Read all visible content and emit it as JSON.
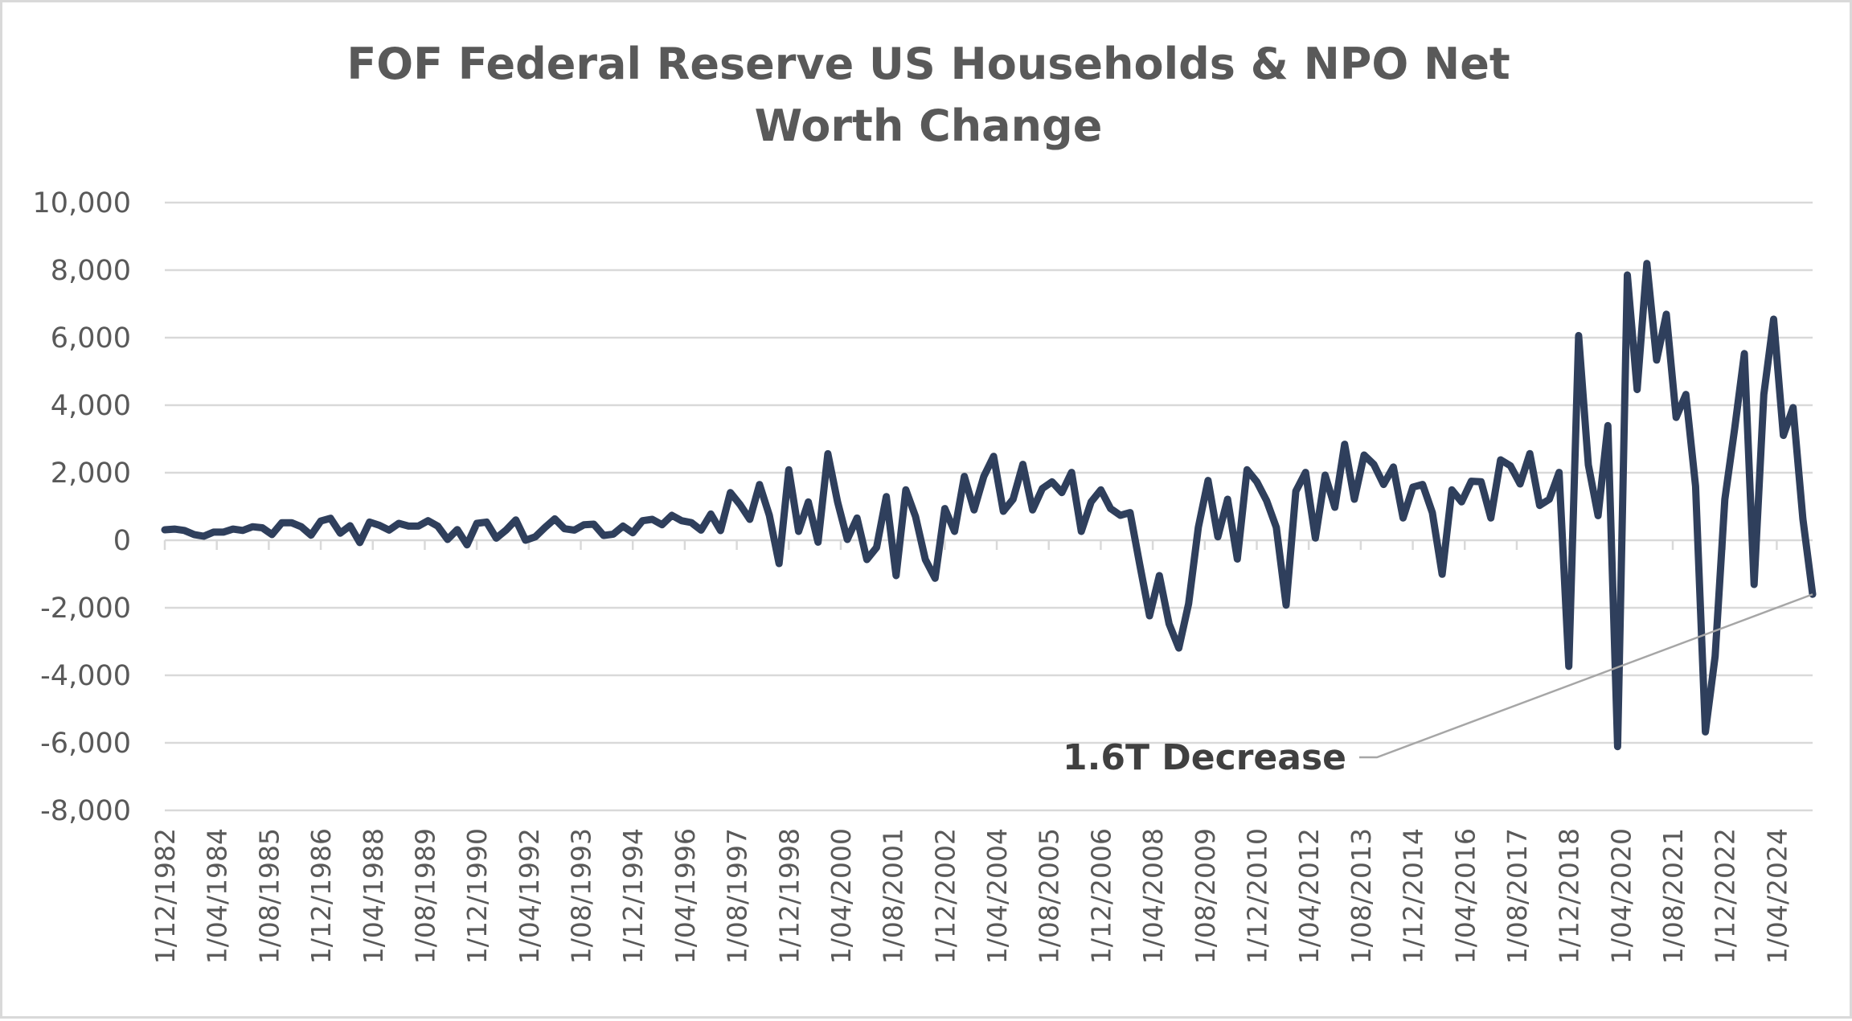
{
  "chart_data": {
    "type": "line",
    "title": [
      "FOF Federal Reserve US Households & NPO Net",
      "Worth Change"
    ],
    "xlabel": "",
    "ylabel": "",
    "ylim": [
      -8000,
      10000
    ],
    "yticks": [
      10000,
      8000,
      6000,
      4000,
      2000,
      0,
      -2000,
      -4000,
      -6000,
      -8000
    ],
    "ytick_labels": [
      "10,000",
      "8,000",
      "6,000",
      "4,000",
      "2,000",
      "0",
      "-2,000",
      "-4,000",
      "-6,000",
      "-8,000"
    ],
    "x_start": "1/12/1982",
    "x_frequency": "quarterly",
    "xtick_labels": [
      "1/12/1982",
      "1/04/1984",
      "1/08/1985",
      "1/12/1986",
      "1/04/1988",
      "1/08/1989",
      "1/12/1990",
      "1/04/1992",
      "1/08/1993",
      "1/12/1994",
      "1/04/1996",
      "1/08/1997",
      "1/12/1998",
      "1/04/2000",
      "1/08/2001",
      "1/12/2002",
      "1/04/2004",
      "1/08/2005",
      "1/12/2006",
      "1/04/2008",
      "1/08/2009",
      "1/12/2010",
      "1/04/2012",
      "1/08/2013",
      "1/12/2014",
      "1/04/2016",
      "1/08/2017",
      "1/12/2018",
      "1/04/2020",
      "1/08/2021",
      "1/12/2022",
      "1/04/2024"
    ],
    "xtick_every_n_points": 5.333,
    "grid": true,
    "legend": "none",
    "series": [
      {
        "name": "Net Worth Change",
        "color": "#2f3f5c",
        "values": [
          310,
          330,
          290,
          170,
          120,
          240,
          240,
          330,
          290,
          400,
          370,
          170,
          520,
          520,
          400,
          150,
          570,
          650,
          210,
          430,
          -70,
          539,
          444,
          301,
          500,
          420,
          420,
          579,
          420,
          24,
          317,
          -135,
          500,
          539,
          63,
          301,
          603,
          0,
          103,
          381,
          634,
          341,
          301,
          460,
          476,
          143,
          182,
          420,
          222,
          579,
          620,
          460,
          738,
          579,
          523,
          301,
          777,
          285,
          1412,
          1055,
          620,
          1650,
          738,
          -690,
          2086,
          262,
          1134,
          -56,
          2561,
          1134,
          24,
          658,
          -571,
          -214,
          1293,
          -1048,
          1493,
          699,
          -572,
          -1127,
          937,
          262,
          1890,
          897,
          1890,
          2485,
          858,
          1215,
          2247,
          897,
          1532,
          1731,
          1413,
          2009,
          262,
          1135,
          1493,
          937,
          738,
          818,
          -730,
          -2239,
          -1048,
          -2477,
          -3192,
          -1882,
          381,
          1771,
          103,
          1215,
          -556,
          2088,
          1731,
          1175,
          381,
          -1922,
          1453,
          2009,
          64,
          1929,
          977,
          2843,
          1215,
          2525,
          2247,
          1652,
          2168,
          659,
          1572,
          1652,
          818,
          -1008,
          1493,
          1135,
          1747,
          1731,
          659,
          2382,
          2207,
          1667,
          2565,
          1032,
          1215,
          2009,
          -3735,
          6063,
          2231,
          728,
          3395,
          -6111,
          7857,
          4462,
          8197,
          5335,
          6693,
          3638,
          4317,
          1601,
          -5675,
          -3444,
          1213,
          3300,
          5529,
          -1310,
          4317,
          6548,
          3104,
          3929,
          631,
          -1601
        ]
      }
    ],
    "annotations": [
      {
        "text": "1.6T Decrease",
        "points_to": "last",
        "value": -1601
      }
    ]
  }
}
